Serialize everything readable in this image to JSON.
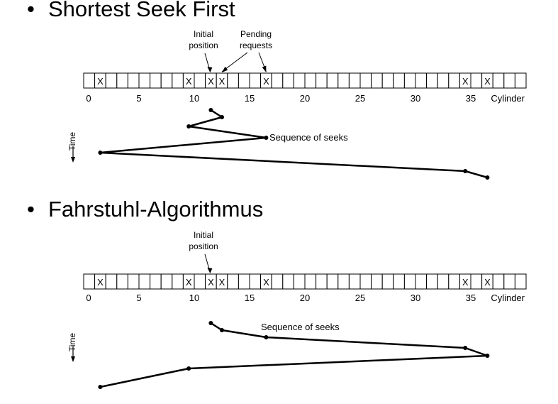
{
  "diagrams": [
    {
      "title": "Shortest Seek First",
      "bullet": "•",
      "cylinder_axis": {
        "min": 0,
        "max": 39,
        "tick_labels": [
          "0",
          "5",
          "10",
          "15",
          "20",
          "25",
          "30",
          "35"
        ],
        "axis_label": "Cylinder"
      },
      "request_marker": "X",
      "requests": [
        1,
        9,
        11,
        12,
        16,
        34,
        36
      ],
      "annotations": {
        "initial": "Initial\nposition",
        "pending": "Pending\nrequests",
        "sequence": "Sequence of seeks",
        "time": "Time"
      },
      "seek_sequence": [
        11,
        12,
        9,
        16,
        1,
        34,
        36
      ]
    },
    {
      "title": "Fahrstuhl-Algorithmus",
      "bullet": "•",
      "cylinder_axis": {
        "min": 0,
        "max": 39,
        "tick_labels": [
          "0",
          "5",
          "10",
          "15",
          "20",
          "25",
          "30",
          "35"
        ],
        "axis_label": "Cylinder"
      },
      "request_marker": "X",
      "requests": [
        1,
        9,
        11,
        12,
        16,
        34,
        36
      ],
      "annotations": {
        "initial": "Initial\nposition",
        "sequence": "Sequence of seeks",
        "time": "Time"
      },
      "seek_sequence": [
        11,
        12,
        16,
        34,
        36,
        9,
        1
      ]
    }
  ]
}
